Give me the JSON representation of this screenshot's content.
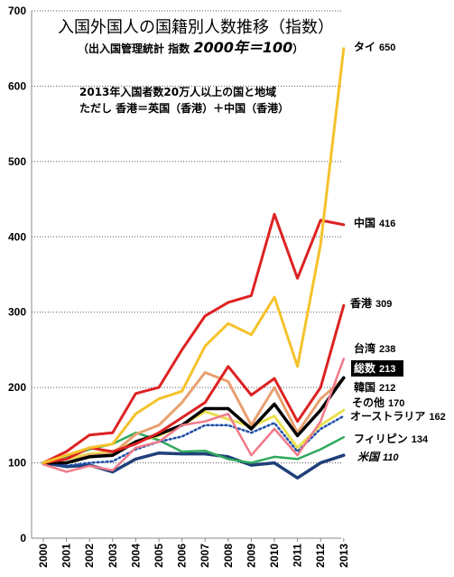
{
  "chart_data": {
    "type": "line",
    "title": "入国外国人の国籍別人数推移（指数）",
    "subtitle_prefix": "（出入国管理統計 指数 ",
    "subtitle_em": "2000年＝100",
    "subtitle_suffix": "）",
    "note_line1": "2013年入国者数20万人以上の国と地域",
    "note_line2": "ただし 香港＝英国（香港）＋中国（香港）",
    "x": [
      "2000",
      "2001",
      "2002",
      "2003",
      "2004",
      "2005",
      "2006",
      "2007",
      "2008",
      "2009",
      "2010",
      "2011",
      "2012",
      "2013"
    ],
    "ylim": [
      0,
      700
    ],
    "yticks": [
      "0",
      "100",
      "200",
      "300",
      "400",
      "500",
      "600",
      "700"
    ],
    "grid": "horizontal-dotted",
    "series": [
      {
        "name": "タイ",
        "end_label": "650",
        "color": "#f5c22b",
        "width": 3,
        "dash": "",
        "values": [
          100,
          110,
          120,
          125,
          165,
          185,
          195,
          255,
          285,
          270,
          320,
          228,
          390,
          650
        ]
      },
      {
        "name": "中国",
        "end_label": "416",
        "color": "#dd2222",
        "width": 3,
        "dash": "",
        "values": [
          100,
          115,
          137,
          140,
          192,
          200,
          250,
          295,
          313,
          322,
          430,
          345,
          422,
          416
        ]
      },
      {
        "name": "香港",
        "end_label": "309",
        "color": "#dd2222",
        "width": 3,
        "dash": "",
        "values": [
          100,
          105,
          120,
          115,
          125,
          140,
          160,
          180,
          228,
          190,
          212,
          155,
          200,
          309
        ]
      },
      {
        "name": "台湾",
        "end_label": "238",
        "color": "#f07a8a",
        "width": 2.5,
        "dash": "",
        "values": [
          98,
          88,
          96,
          90,
          120,
          128,
          150,
          155,
          165,
          110,
          145,
          110,
          155,
          238
        ]
      },
      {
        "name": "総数",
        "end_label": "213",
        "color": "#000000",
        "width": 3.5,
        "dash": "",
        "values": [
          100,
          100,
          108,
          110,
          128,
          138,
          150,
          172,
          172,
          145,
          178,
          136,
          170,
          213
        ]
      },
      {
        "name": "韓国",
        "end_label": "212",
        "color": "#e8a070",
        "width": 3,
        "dash": "",
        "values": [
          100,
          100,
          110,
          112,
          138,
          150,
          180,
          220,
          208,
          150,
          200,
          140,
          185,
          212
        ]
      },
      {
        "name": "その他",
        "end_label": "170",
        "color": "#e9e050",
        "width": 3,
        "dash": "",
        "values": [
          100,
          105,
          112,
          115,
          128,
          136,
          150,
          168,
          158,
          148,
          162,
          120,
          150,
          170
        ]
      },
      {
        "name": "オーストラリア",
        "end_label": "162",
        "color": "#1f4ea8",
        "width": 2.5,
        "dash": "2,3",
        "values": [
          100,
          96,
          100,
          102,
          118,
          128,
          135,
          150,
          150,
          140,
          153,
          115,
          145,
          162
        ]
      },
      {
        "name": "フィリピン",
        "end_label": "134",
        "color": "#2eaa5a",
        "width": 2.5,
        "dash": "",
        "values": [
          98,
          108,
          118,
          125,
          140,
          130,
          115,
          116,
          105,
          100,
          108,
          105,
          118,
          134
        ]
      },
      {
        "name": "米国",
        "end_label": "110",
        "color": "#1f3f7a",
        "width": 3.5,
        "dash": "",
        "values": [
          100,
          95,
          97,
          88,
          105,
          113,
          112,
          112,
          108,
          97,
          100,
          80,
          100,
          110
        ]
      }
    ]
  },
  "labels_layout_order": [
    "タイ",
    "中国",
    "香港",
    "台湾",
    "総数",
    "韓国",
    "その他",
    "オーストラリア",
    "フィリピン",
    "米国"
  ]
}
